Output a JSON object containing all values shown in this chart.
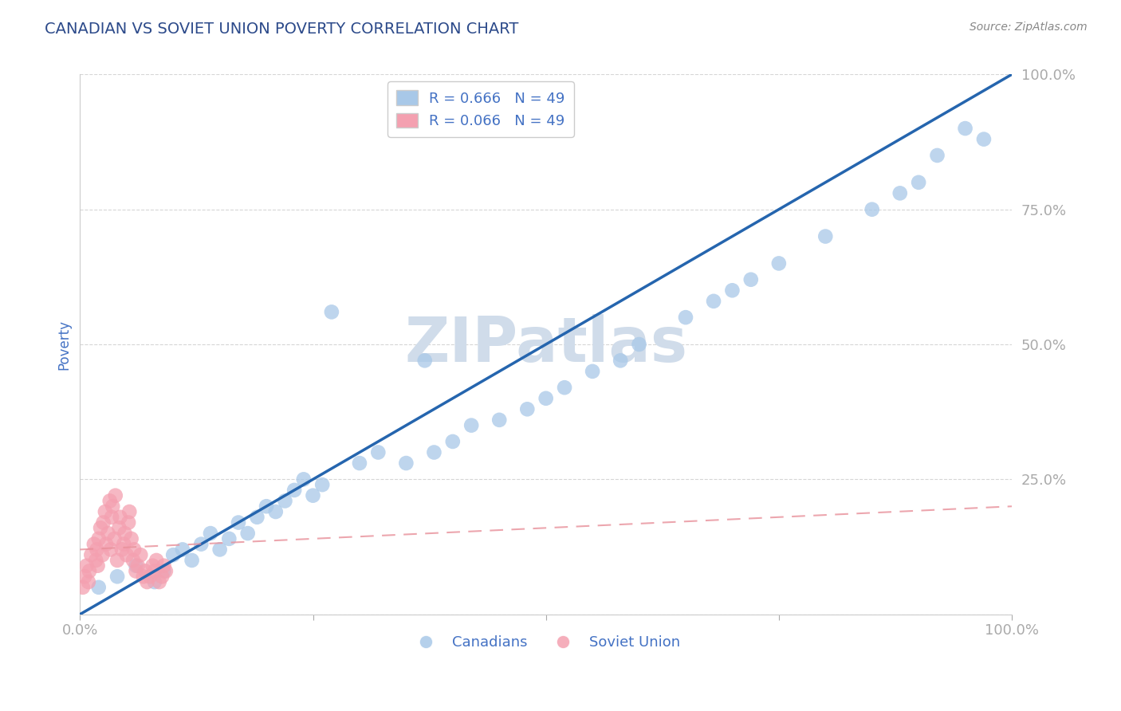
{
  "title": "CANADIAN VS SOVIET UNION POVERTY CORRELATION CHART",
  "source": "Source: ZipAtlas.com",
  "ylabel": "Poverty",
  "xlabel": "",
  "xlim": [
    0.0,
    1.0
  ],
  "ylim": [
    0.0,
    1.0
  ],
  "legend_canadians_label": "Canadians",
  "legend_soviet_label": "Soviet Union",
  "canadian_R": 0.666,
  "canadian_N": 49,
  "soviet_R": 0.066,
  "soviet_N": 49,
  "canadian_color": "#a8c8e8",
  "soviet_color": "#f4a0b0",
  "canadian_line_color": "#2565ae",
  "soviet_line_color": "#e8909a",
  "title_color": "#2c4a8a",
  "axis_color": "#4472c4",
  "watermark_color": "#d0dcea",
  "background_color": "#ffffff",
  "canadian_x": [
    0.02,
    0.04,
    0.06,
    0.08,
    0.09,
    0.1,
    0.11,
    0.12,
    0.13,
    0.14,
    0.15,
    0.16,
    0.17,
    0.18,
    0.19,
    0.2,
    0.21,
    0.22,
    0.23,
    0.24,
    0.25,
    0.26,
    0.27,
    0.3,
    0.32,
    0.35,
    0.37,
    0.38,
    0.4,
    0.42,
    0.45,
    0.48,
    0.5,
    0.52,
    0.55,
    0.58,
    0.6,
    0.65,
    0.68,
    0.7,
    0.72,
    0.75,
    0.8,
    0.85,
    0.88,
    0.9,
    0.92,
    0.95,
    0.97
  ],
  "canadian_y": [
    0.05,
    0.07,
    0.09,
    0.06,
    0.08,
    0.11,
    0.12,
    0.1,
    0.13,
    0.15,
    0.12,
    0.14,
    0.17,
    0.15,
    0.18,
    0.2,
    0.19,
    0.21,
    0.23,
    0.25,
    0.22,
    0.24,
    0.56,
    0.28,
    0.3,
    0.28,
    0.47,
    0.3,
    0.32,
    0.35,
    0.36,
    0.38,
    0.4,
    0.42,
    0.45,
    0.47,
    0.5,
    0.55,
    0.58,
    0.6,
    0.62,
    0.65,
    0.7,
    0.75,
    0.78,
    0.8,
    0.85,
    0.9,
    0.88
  ],
  "soviet_x": [
    0.003,
    0.005,
    0.007,
    0.009,
    0.01,
    0.012,
    0.015,
    0.017,
    0.018,
    0.019,
    0.02,
    0.022,
    0.024,
    0.025,
    0.027,
    0.028,
    0.03,
    0.032,
    0.033,
    0.034,
    0.035,
    0.037,
    0.038,
    0.04,
    0.042,
    0.043,
    0.045,
    0.047,
    0.048,
    0.05,
    0.052,
    0.053,
    0.055,
    0.057,
    0.058,
    0.06,
    0.062,
    0.065,
    0.068,
    0.07,
    0.072,
    0.075,
    0.078,
    0.08,
    0.082,
    0.085,
    0.088,
    0.09,
    0.092
  ],
  "soviet_y": [
    0.05,
    0.07,
    0.09,
    0.06,
    0.08,
    0.11,
    0.13,
    0.1,
    0.12,
    0.09,
    0.14,
    0.16,
    0.11,
    0.17,
    0.19,
    0.13,
    0.15,
    0.21,
    0.12,
    0.18,
    0.2,
    0.14,
    0.22,
    0.1,
    0.16,
    0.18,
    0.12,
    0.13,
    0.15,
    0.11,
    0.17,
    0.19,
    0.14,
    0.1,
    0.12,
    0.08,
    0.09,
    0.11,
    0.07,
    0.08,
    0.06,
    0.07,
    0.09,
    0.08,
    0.1,
    0.06,
    0.07,
    0.09,
    0.08
  ],
  "can_line_x": [
    0.0,
    1.0
  ],
  "can_line_y": [
    0.0,
    1.0
  ],
  "sov_line_x": [
    0.0,
    1.0
  ],
  "sov_line_y": [
    0.12,
    0.2
  ]
}
